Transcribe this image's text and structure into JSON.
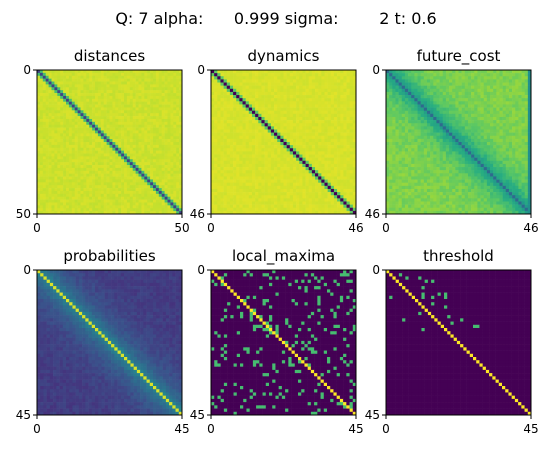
{
  "figure_title": "Q: 7 alpha:      0.999 sigma:        2 t: 0.6",
  "colors": {
    "colormap": "viridis",
    "viridis_low": "#440154",
    "viridis_mid": "#21918c",
    "viridis_green": "#5ec962",
    "viridis_high": "#fde725"
  },
  "chart_data": [
    {
      "type": "heatmap",
      "title": "distances",
      "xlabel": "",
      "ylabel": "",
      "size": 50,
      "xticks": [
        "0",
        "50"
      ],
      "yticks": [
        "0",
        "50"
      ],
      "colormap": "viridis",
      "pattern": "low-valued diagonal (~0.2), near-maximum elsewhere (~0.95)",
      "diagonal_value": 0.2,
      "off_diagonal_value": 0.95,
      "value_scale": "normalized 0-1 colormap position"
    },
    {
      "type": "heatmap",
      "title": "dynamics",
      "xlabel": "",
      "ylabel": "",
      "size": 46,
      "xticks": [
        "0",
        "46"
      ],
      "yticks": [
        "0",
        "46"
      ],
      "colormap": "viridis",
      "pattern": "minimum-valued diagonal, near-maximum elsewhere",
      "diagonal_value": 0.0,
      "off_diagonal_value": 0.96,
      "value_scale": "normalized 0-1 colormap position"
    },
    {
      "type": "heatmap",
      "title": "future_cost",
      "xlabel": "",
      "ylabel": "",
      "size": 46,
      "xticks": [
        "0",
        "46"
      ],
      "yticks": [
        "0",
        "46"
      ],
      "colormap": "viridis",
      "pattern": "low diagonal with green band near diagonal, yellow-green far from diagonal, teal last column",
      "diagonal_value": 0.35,
      "near_diagonal_value": 0.55,
      "off_diagonal_value": 0.85,
      "last_column_value": 0.5,
      "value_scale": "normalized 0-1 colormap position"
    },
    {
      "type": "heatmap",
      "title": "probabilities",
      "xlabel": "",
      "ylabel": "",
      "size": 45,
      "xticks": [
        "0",
        "45"
      ],
      "yticks": [
        "0",
        "45"
      ],
      "colormap": "viridis",
      "pattern": "high-valued diagonal, teal band near diagonal, dark purple far from diagonal",
      "diagonal_value": 0.95,
      "near_diagonal_value": 0.45,
      "off_diagonal_value": 0.15,
      "value_scale": "normalized 0-1 colormap position"
    },
    {
      "type": "heatmap",
      "title": "local_maxima",
      "xlabel": "",
      "ylabel": "",
      "size": 45,
      "xticks": [
        "0",
        "45"
      ],
      "yticks": [
        "0",
        "45"
      ],
      "colormap": "viridis",
      "pattern": "sparse binary mask: yellow diagonal, scattered green cells (local maxima), purple background",
      "diagonal_value": 1.0,
      "marked_value": 0.7,
      "background_value": 0.0,
      "marked_density": 0.12,
      "value_scale": "normalized 0-1 colormap position"
    },
    {
      "type": "heatmap",
      "title": "threshold",
      "xlabel": "",
      "ylabel": "",
      "size": 45,
      "xticks": [
        "0",
        "45"
      ],
      "yticks": [
        "0",
        "45"
      ],
      "colormap": "viridis",
      "pattern": "binary mask: yellow diagonal, few green cells near rows 0-20, purple background",
      "diagonal_value": 1.0,
      "marked_value": 0.7,
      "background_value": 0.0,
      "marked_density": 0.03,
      "value_scale": "normalized 0-1 colormap position"
    }
  ]
}
